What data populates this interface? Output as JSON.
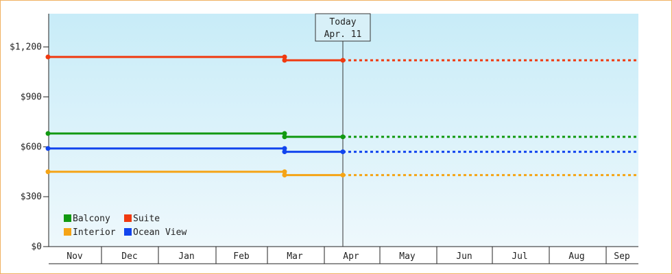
{
  "chart_data": {
    "type": "line",
    "y_ticks": [
      "$0",
      "$300",
      "$600",
      "$900",
      "$1,200"
    ],
    "y_tick_values": [
      0,
      300,
      600,
      900,
      1200
    ],
    "ylim": [
      0,
      1400
    ],
    "x_months": [
      "Nov",
      "Dec",
      "Jan",
      "Feb",
      "Mar",
      "Apr",
      "May",
      "Jun",
      "Jul",
      "Aug",
      "Sep"
    ],
    "grid": false,
    "legend_position": "bottom-left",
    "today": {
      "line1": "Today",
      "line2": "Apr. 11"
    },
    "colors": {
      "plot_bg_top": "#c8ecf8",
      "plot_bg_bottom": "#eef8fc",
      "frame": "#f0b060"
    },
    "series": [
      {
        "name": "Suite",
        "color": "#f03a10",
        "history": [
          {
            "x": "Nov",
            "y": 1140
          },
          {
            "x": "Mar",
            "y": 1140
          },
          {
            "x": "Mar",
            "y": 1120
          },
          {
            "x": "Apr. 11",
            "y": 1120
          }
        ],
        "projected": [
          {
            "x": "Apr. 11",
            "y": 1120
          },
          {
            "x": "Sep",
            "y": 1120
          }
        ]
      },
      {
        "name": "Balcony",
        "color": "#119911",
        "history": [
          {
            "x": "Nov",
            "y": 680
          },
          {
            "x": "Mar",
            "y": 680
          },
          {
            "x": "Mar",
            "y": 660
          },
          {
            "x": "Apr. 11",
            "y": 660
          }
        ],
        "projected": [
          {
            "x": "Apr. 11",
            "y": 660
          },
          {
            "x": "Sep",
            "y": 660
          }
        ]
      },
      {
        "name": "Ocean View",
        "color": "#1144ee",
        "history": [
          {
            "x": "Nov",
            "y": 590
          },
          {
            "x": "Mar",
            "y": 590
          },
          {
            "x": "Mar",
            "y": 570
          },
          {
            "x": "Apr. 11",
            "y": 570
          }
        ],
        "projected": [
          {
            "x": "Apr. 11",
            "y": 570
          },
          {
            "x": "Sep",
            "y": 570
          }
        ]
      },
      {
        "name": "Interior",
        "color": "#f5a416",
        "history": [
          {
            "x": "Nov",
            "y": 450
          },
          {
            "x": "Mar",
            "y": 450
          },
          {
            "x": "Mar",
            "y": 430
          },
          {
            "x": "Apr. 11",
            "y": 430
          }
        ],
        "projected": [
          {
            "x": "Apr. 11",
            "y": 430
          },
          {
            "x": "Sep",
            "y": 430
          }
        ]
      }
    ],
    "legend": [
      {
        "label": "Balcony",
        "color": "#119911"
      },
      {
        "label": "Suite",
        "color": "#f03a10"
      },
      {
        "label": "Interior",
        "color": "#f5a416"
      },
      {
        "label": "Ocean View",
        "color": "#1144ee"
      }
    ]
  }
}
